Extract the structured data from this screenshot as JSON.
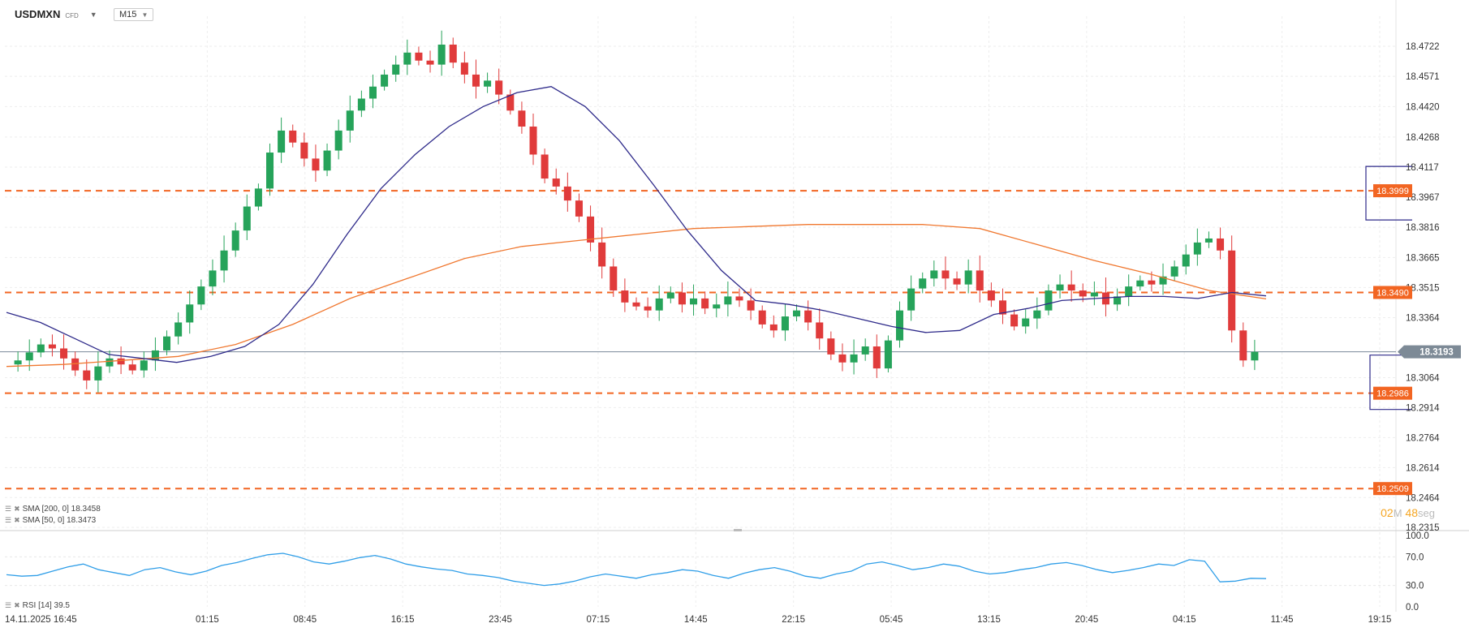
{
  "header": {
    "symbol": "USDMXN",
    "class": "CFD",
    "timeframe": "M15"
  },
  "indicators": {
    "sma200": "SMA [200, 0]  18.3458",
    "sma50": "SMA [50, 0]  18.3473",
    "rsi": "RSI [14]  39.5"
  },
  "timer": {
    "min": "02",
    "min_unit": "M",
    "sec": "48",
    "sec_unit": "seg"
  },
  "colors": {
    "up": "#26a35a",
    "down": "#e03b3b",
    "sma50": "#2e2a8a",
    "sma200": "#f07830",
    "level": "#f26522",
    "rsi": "#2f9ee8"
  },
  "chart_data": {
    "type": "candlestick",
    "symbol": "USDMXN",
    "timeframe": "M15",
    "y_ticks": [
      "18.4722",
      "18.4571",
      "18.4420",
      "18.4268",
      "18.4117",
      "18.3967",
      "18.3816",
      "18.3665",
      "18.3515",
      "18.3364",
      "18.3064",
      "18.2914",
      "18.2764",
      "18.2614",
      "18.2464",
      "18.2315"
    ],
    "ylim": [
      18.2315,
      18.4872
    ],
    "x_ticks": [
      "14.11.2025  16:45",
      "01:15",
      "08:45",
      "16:15",
      "23:45",
      "07:15",
      "14:45",
      "22:15",
      "05:45",
      "13:15",
      "20:45",
      "04:15",
      "11:45",
      "19:15"
    ],
    "current_price": "18.3193",
    "levels": [
      {
        "label": "18.3999",
        "value": 18.3999
      },
      {
        "label": "18.3490",
        "value": 18.349
      },
      {
        "label": "18.2986",
        "value": 18.2986
      },
      {
        "label": "18.2509",
        "value": 18.2509
      }
    ],
    "price_series": [
      18.313,
      18.315,
      18.319,
      18.323,
      18.321,
      18.316,
      18.31,
      18.305,
      18.312,
      18.316,
      18.313,
      18.31,
      18.315,
      18.32,
      18.327,
      18.334,
      18.343,
      18.352,
      18.36,
      18.37,
      18.38,
      18.392,
      18.401,
      18.419,
      18.43,
      18.424,
      18.416,
      18.41,
      18.42,
      18.43,
      18.44,
      18.446,
      18.452,
      18.458,
      18.463,
      18.469,
      18.465,
      18.463,
      18.473,
      18.464,
      18.458,
      18.452,
      18.455,
      18.448,
      18.44,
      18.432,
      18.418,
      18.406,
      18.402,
      18.395,
      18.387,
      18.374,
      18.362,
      18.35,
      18.344,
      18.342,
      18.34,
      18.346,
      18.349,
      18.343,
      18.346,
      18.341,
      18.343,
      18.347,
      18.345,
      18.34,
      18.333,
      18.33,
      18.337,
      18.34,
      18.334,
      18.326,
      18.318,
      18.314,
      18.318,
      18.322,
      18.311,
      18.325,
      18.34,
      18.351,
      18.356,
      18.36,
      18.356,
      18.353,
      18.36,
      18.35,
      18.345,
      18.338,
      18.332,
      18.336,
      18.34,
      18.35,
      18.353,
      18.35,
      18.347,
      18.349,
      18.343,
      18.347,
      18.352,
      18.355,
      18.353,
      18.357,
      18.362,
      18.368,
      18.374,
      18.376,
      18.37,
      18.33,
      18.315,
      18.3193
    ],
    "sma50_series": [
      18.339,
      18.334,
      18.326,
      18.318,
      18.316,
      18.314,
      18.317,
      18.322,
      18.333,
      18.353,
      18.378,
      18.401,
      18.418,
      18.432,
      18.442,
      18.449,
      18.452,
      18.442,
      18.425,
      18.403,
      18.38,
      18.36,
      18.345,
      18.343,
      18.34,
      18.336,
      18.332,
      18.329,
      18.33,
      18.338,
      18.341,
      18.345,
      18.346,
      18.347,
      18.347,
      18.346,
      18.349,
      18.3473
    ],
    "sma200_series": [
      18.312,
      18.313,
      18.315,
      18.317,
      18.323,
      18.333,
      18.346,
      18.356,
      18.366,
      18.372,
      18.375,
      18.378,
      18.381,
      18.382,
      18.383,
      18.383,
      18.383,
      18.381,
      18.373,
      18.365,
      18.358,
      18.35,
      18.3458
    ],
    "rsi": {
      "y_ticks": [
        "100.0",
        "70.0",
        "30.0",
        "0.0"
      ],
      "ylim": [
        0,
        100
      ],
      "last": 39.5,
      "values": [
        45,
        43,
        44,
        50,
        56,
        60,
        52,
        48,
        44,
        52,
        55,
        49,
        45,
        50,
        58,
        62,
        68,
        73,
        75,
        70,
        63,
        60,
        64,
        69,
        72,
        67,
        60,
        56,
        53,
        51,
        46,
        44,
        41,
        36,
        33,
        30,
        32,
        36,
        42,
        46,
        43,
        40,
        45,
        48,
        52,
        50,
        44,
        40,
        47,
        52,
        55,
        50,
        43,
        40,
        46,
        50,
        60,
        63,
        58,
        52,
        55,
        60,
        57,
        50,
        46,
        48,
        52,
        55,
        60,
        62,
        58,
        52,
        48,
        51,
        55,
        60,
        58,
        66,
        64,
        35,
        36,
        40,
        39.5
      ]
    }
  }
}
